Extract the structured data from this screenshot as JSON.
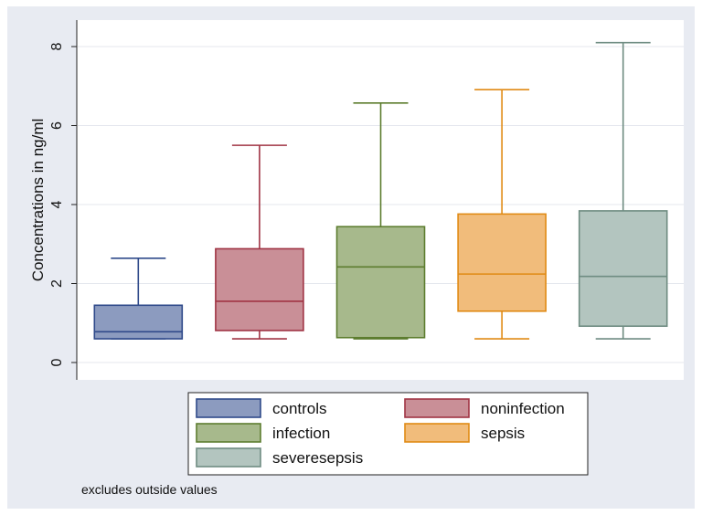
{
  "chart_data": {
    "type": "box",
    "ylabel": "Concentrations in ng/ml",
    "ylim": [
      0,
      8.4
    ],
    "yticks": [
      0,
      2,
      4,
      6,
      8
    ],
    "grid": true,
    "legend_position": "bottom",
    "note": "excludes outside values",
    "series": [
      {
        "name": "controls",
        "whisker_low": 0.6,
        "q1": 0.6,
        "median": 0.78,
        "q3": 1.45,
        "whisker_high": 2.64,
        "fill": "#8c9bbf",
        "stroke": "#2f4a8a"
      },
      {
        "name": "noninfection",
        "whisker_low": 0.6,
        "q1": 0.81,
        "median": 1.55,
        "q3": 2.88,
        "whisker_high": 5.5,
        "fill": "#c98f97",
        "stroke": "#a03444"
      },
      {
        "name": "infection",
        "whisker_low": 0.6,
        "q1": 0.63,
        "median": 2.42,
        "q3": 3.44,
        "whisker_high": 6.57,
        "fill": "#a7b98c",
        "stroke": "#5d7d2f"
      },
      {
        "name": "sepsis",
        "whisker_low": 0.6,
        "q1": 1.3,
        "median": 2.24,
        "q3": 3.76,
        "whisker_high": 6.91,
        "fill": "#f1bc7b",
        "stroke": "#e08a14"
      },
      {
        "name": "severesepsis",
        "whisker_low": 0.6,
        "q1": 0.92,
        "median": 2.18,
        "q3": 3.84,
        "whisker_high": 8.1,
        "fill": "#b3c5bf",
        "stroke": "#6f8c82"
      }
    ]
  }
}
